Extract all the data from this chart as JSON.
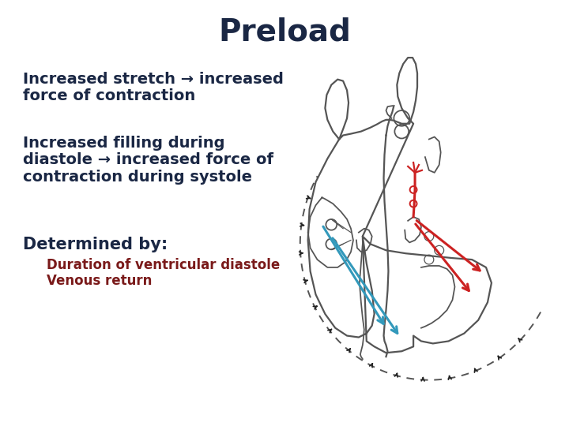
{
  "title": "Preload",
  "title_color": "#1a2744",
  "title_fontsize": 28,
  "title_fontweight": "bold",
  "background_color": "#ffffff",
  "text_color": "#1a2744",
  "red_text_color": "#7a1a1a",
  "bullet1_line1": "Increased stretch → increased",
  "bullet1_line2": "force of contraction",
  "bullet2_line1": "Increased filling during",
  "bullet2_line2": "diastole → increased force of",
  "bullet2_line3": "contraction during systole",
  "bullet3_header": "Determined by:",
  "bullet3_sub1": "Duration of ventricular diastole",
  "bullet3_sub2": "Venous return",
  "text_fontsize": 14,
  "sub_fontsize": 12,
  "heart_color": "#555555",
  "red_arrow_color": "#cc2222",
  "blue_arrow_color": "#3399bb",
  "tick_color": "#222222",
  "figwidth": 7.2,
  "figheight": 5.4,
  "dpi": 100
}
